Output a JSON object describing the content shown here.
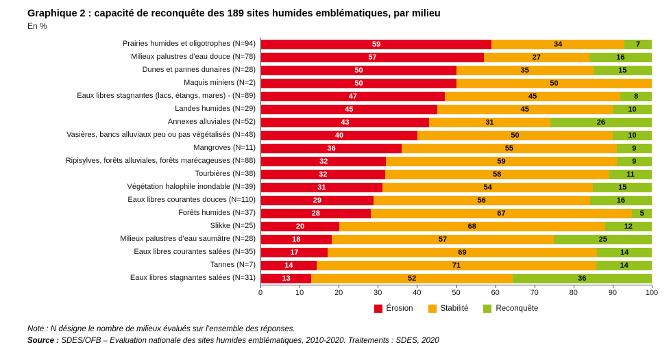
{
  "title": "Graphique 2 : capacité de reconquête des 189 sites humides emblématiques, par milieu",
  "subtitle": "En %",
  "chart_data": {
    "type": "bar",
    "orientation": "horizontal",
    "stacked": true,
    "xlim": [
      0,
      100
    ],
    "x_ticks": [
      0,
      10,
      20,
      30,
      40,
      50,
      60,
      70,
      80,
      90,
      100
    ],
    "legend_position": "bottom",
    "grid": false,
    "categories": [
      "Prairies humides et oligotrophes (N=94)",
      "Milieux palustres d’eau douce (N=78)",
      "Dunes et pannes dunaires (N=28)",
      "Maquis miniers (N=2)",
      "Eaux libres stagnantes (lacs, étangs, mares) - (N=89)",
      "Landes humides (N=29)",
      "Annexes alluviales (N=52)",
      "Vasières, bancs alluviaux peu ou pas végétalisés (N=48)",
      "Mangroves (N=11)",
      "Ripisylves, forêts alluviales, forêts marécageuses (N=88)",
      "Tourbières (N=38)",
      "Végétation halophile inondable (N=39)",
      "Eaux libres courantes douces (N=110)",
      "Forêts humides (N=37)",
      "Slikke (N=25)",
      "Milieux palustres d’eau saumâtre (N=28)",
      "Eaux libres courantes salées (N=35)",
      "Tannes (N=7)",
      "Eaux libres stagnantes salées (N=31)"
    ],
    "series": [
      {
        "key": "erosion",
        "name": "Érosion",
        "color": "#e2001a",
        "label_color": "white",
        "values": [
          59,
          57,
          50,
          50,
          47,
          45,
          43,
          40,
          36,
          32,
          32,
          31,
          29,
          28,
          20,
          18,
          17,
          14,
          13
        ]
      },
      {
        "key": "stabilite",
        "name": "Stabilité",
        "color": "#f6a800",
        "label_color": "black",
        "values": [
          34,
          27,
          35,
          50,
          45,
          45,
          31,
          50,
          55,
          59,
          58,
          54,
          56,
          67,
          68,
          57,
          69,
          71,
          52
        ]
      },
      {
        "key": "reconquete",
        "name": "Reconquête",
        "color": "#95c11f",
        "label_color": "black",
        "values": [
          7,
          16,
          15,
          0,
          8,
          10,
          26,
          10,
          9,
          9,
          11,
          15,
          16,
          5,
          12,
          25,
          14,
          14,
          36
        ]
      }
    ]
  },
  "notes": {
    "note_label": "Note :",
    "note_text": " N désigne le nombre de milieux évalués sur l’ensemble des réponses.",
    "source_label": "Source :",
    "source_text": " SDES/OFB – Evaluation nationale des sites humides emblématiques, 2010-2020. Traitements : SDES, 2020"
  }
}
